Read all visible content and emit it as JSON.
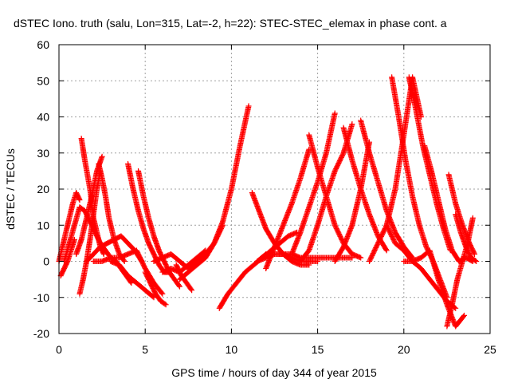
{
  "chart_data": {
    "type": "scatter",
    "title": "dSTEC Iono. truth (salu, Lon=315, Lat=-2, h=22): STEC-STEC_elemax in phase cont. a",
    "xlabel": "GPS time / hours of day 344 of year 2015",
    "ylabel": "dSTEC  / TECUs",
    "xlim": [
      0,
      25
    ],
    "ylim": [
      -20,
      60
    ],
    "xticks": [
      0,
      5,
      10,
      15,
      20,
      25
    ],
    "yticks": [
      -20,
      -10,
      0,
      10,
      20,
      30,
      40,
      50,
      60
    ],
    "grid": true,
    "marker": "+",
    "color": "#ff0000",
    "series": [
      {
        "x": [
          0.0,
          0.2,
          0.4,
          0.6,
          0.8,
          1.0,
          1.2
        ],
        "y": [
          0,
          4,
          8,
          12,
          16,
          19,
          17
        ]
      },
      {
        "x": [
          0.1,
          0.3,
          0.5,
          0.7,
          0.9
        ],
        "y": [
          -4,
          -2,
          0,
          3,
          6
        ]
      },
      {
        "x": [
          0.3,
          0.6,
          0.9,
          1.2,
          1.5,
          1.8,
          2.1,
          2.4,
          2.7,
          3.0,
          3.3,
          3.6,
          3.9,
          4.2
        ],
        "y": [
          0,
          5,
          10,
          15,
          14,
          11,
          8,
          5,
          3,
          1,
          0,
          -2,
          -4,
          -6
        ]
      },
      {
        "x": [
          1.2,
          1.4,
          1.6,
          1.8,
          2.0,
          2.2,
          2.4
        ],
        "y": [
          -9,
          -5,
          0,
          6,
          13,
          20,
          25
        ]
      },
      {
        "x": [
          1.3,
          1.5,
          1.8,
          2.0,
          2.2,
          2.4,
          2.6
        ],
        "y": [
          34,
          28,
          20,
          12,
          8,
          4,
          2
        ]
      },
      {
        "x": [
          1.0,
          1.3,
          1.6,
          1.9,
          2.2,
          2.5
        ],
        "y": [
          2,
          6,
          12,
          18,
          25,
          29
        ]
      },
      {
        "x": [
          2.3,
          2.5,
          2.7,
          2.9,
          3.2,
          3.5,
          3.8
        ],
        "y": [
          27,
          23,
          18,
          12,
          6,
          2,
          0
        ]
      },
      {
        "x": [
          1.6,
          2.0,
          2.4,
          2.8,
          3.2,
          3.6,
          4.0,
          4.4,
          4.8
        ],
        "y": [
          0,
          2,
          4,
          5,
          6,
          7,
          5,
          3,
          0
        ]
      },
      {
        "x": [
          2.0,
          2.5,
          3.0,
          3.5,
          4.0,
          4.5,
          5.0,
          5.5,
          6.0
        ],
        "y": [
          0,
          0,
          1,
          1,
          2,
          3,
          -2,
          -6,
          -9
        ]
      },
      {
        "x": [
          3.0,
          3.5,
          4.0,
          4.5,
          5.0,
          5.5
        ],
        "y": [
          0,
          -1,
          -4,
          -6,
          -8,
          -10
        ]
      },
      {
        "x": [
          4.0,
          4.3,
          4.6,
          4.9,
          5.2,
          5.5,
          5.8,
          6.1,
          6.4
        ],
        "y": [
          27,
          20,
          14,
          9,
          5,
          2,
          -1,
          -3,
          -3
        ]
      },
      {
        "x": [
          4.6,
          4.9,
          5.2,
          5.5,
          5.8,
          6.1,
          6.4,
          6.7,
          7.0
        ],
        "y": [
          25,
          18,
          12,
          7,
          3,
          0,
          -3,
          -5,
          -7
        ]
      },
      {
        "x": [
          5.0,
          5.3,
          5.6,
          5.9,
          6.2
        ],
        "y": [
          -3,
          -6,
          -9,
          -11,
          -12
        ]
      },
      {
        "x": [
          5.5,
          6.0,
          6.5,
          7.0,
          7.5,
          8.0,
          8.5,
          9.0,
          9.5
        ],
        "y": [
          0,
          1,
          2,
          0,
          -2,
          0,
          2,
          5,
          10
        ]
      },
      {
        "x": [
          6.0,
          6.5,
          7.0,
          7.5,
          8.0,
          8.5
        ],
        "y": [
          -3,
          -2,
          -3,
          -1,
          1,
          3
        ]
      },
      {
        "x": [
          6.8,
          7.1,
          7.4,
          7.7
        ],
        "y": [
          -1,
          -4,
          -6,
          -8
        ]
      },
      {
        "x": [
          7.0,
          7.5,
          8.0,
          8.5,
          9.0,
          9.5,
          10.0,
          10.5,
          11.0
        ],
        "y": [
          -5,
          -3,
          -1,
          1,
          5,
          11,
          20,
          32,
          43
        ]
      },
      {
        "x": [
          9.3,
          9.8,
          10.3,
          10.8,
          11.3,
          11.8,
          12.3,
          12.8,
          13.3,
          13.8
        ],
        "y": [
          -13,
          -9,
          -6,
          -3,
          -1,
          1,
          3,
          5,
          7,
          8
        ]
      },
      {
        "x": [
          11.2,
          11.6,
          12.0,
          12.5,
          13.0,
          13.5,
          14.0,
          14.5
        ],
        "y": [
          19,
          14,
          9,
          5,
          2,
          0,
          -1,
          -1
        ]
      },
      {
        "x": [
          11.5,
          12.0,
          12.5,
          13.0,
          13.5,
          14.0,
          14.5,
          15.0
        ],
        "y": [
          0,
          1,
          2,
          2,
          1,
          0,
          0,
          0
        ]
      },
      {
        "x": [
          11.5,
          12.0,
          12.5,
          13.0,
          13.5,
          14.0,
          14.5,
          15.0,
          15.5,
          16.0,
          16.5,
          17.0
        ],
        "y": [
          0,
          2,
          2,
          2,
          2,
          1,
          1,
          1,
          1,
          1,
          1,
          1
        ]
      },
      {
        "x": [
          12.0,
          12.5,
          13.0,
          13.5,
          14.0,
          14.5
        ],
        "y": [
          -2,
          4,
          10,
          16,
          23,
          31
        ]
      },
      {
        "x": [
          13.5,
          14.0,
          14.5,
          15.0,
          15.5,
          16.0
        ],
        "y": [
          2,
          8,
          15,
          22,
          30,
          41
        ]
      },
      {
        "x": [
          14.0,
          14.5,
          15.0,
          15.5,
          16.0,
          16.5,
          17.0
        ],
        "y": [
          0,
          3,
          10,
          18,
          25,
          30,
          38
        ]
      },
      {
        "x": [
          14.5,
          15.0,
          15.5,
          16.0,
          16.5,
          17.0,
          17.5
        ],
        "y": [
          35,
          26,
          18,
          10,
          5,
          2,
          1
        ]
      },
      {
        "x": [
          16.5,
          17.0,
          17.5,
          18.0,
          18.5,
          19.0
        ],
        "y": [
          37,
          28,
          20,
          13,
          7,
          3
        ]
      },
      {
        "x": [
          16.0,
          16.5,
          17.0,
          17.5,
          18.0
        ],
        "y": [
          0,
          4,
          10,
          20,
          33
        ]
      },
      {
        "x": [
          17.5,
          18.0,
          18.5,
          19.0,
          19.5,
          20.0,
          20.5
        ],
        "y": [
          39,
          30,
          22,
          14,
          8,
          4,
          1
        ]
      },
      {
        "x": [
          18.0,
          18.5,
          19.0,
          19.5,
          20.0,
          20.5,
          21.0
        ],
        "y": [
          0,
          5,
          10,
          20,
          35,
          51,
          40
        ]
      },
      {
        "x": [
          19.3,
          19.7,
          20.1,
          20.5,
          20.9,
          21.3,
          21.7,
          22.1,
          22.5
        ],
        "y": [
          51,
          40,
          28,
          18,
          10,
          4,
          0,
          -5,
          -10
        ]
      },
      {
        "x": [
          20.3,
          20.7,
          21.1,
          21.5,
          21.9,
          22.3,
          22.7
        ],
        "y": [
          51,
          42,
          32,
          24,
          16,
          9,
          3
        ]
      },
      {
        "x": [
          19.0,
          19.5,
          20.0,
          20.5,
          21.0,
          21.5,
          22.0,
          22.5,
          23.0
        ],
        "y": [
          10,
          5,
          3,
          0,
          -2,
          -5,
          -8,
          -11,
          -13
        ]
      },
      {
        "x": [
          20.0,
          20.5,
          21.0,
          21.5,
          22.0,
          22.5,
          23.0,
          23.5
        ],
        "y": [
          0,
          0,
          1,
          3,
          -5,
          -12,
          -18,
          -15
        ]
      },
      {
        "x": [
          21.2,
          21.6,
          22.0,
          22.4,
          22.8,
          23.2,
          23.6,
          24.0
        ],
        "y": [
          32,
          25,
          17,
          9,
          3,
          0,
          1,
          0
        ]
      },
      {
        "x": [
          22.6,
          23.0,
          23.4,
          23.8,
          24.1
        ],
        "y": [
          24,
          16,
          10,
          5,
          2
        ]
      },
      {
        "x": [
          22.5,
          22.8,
          23.1,
          23.4,
          23.7,
          24.0
        ],
        "y": [
          -18,
          -12,
          -5,
          0,
          5,
          12
        ]
      },
      {
        "x": [
          23.0,
          23.3,
          23.6,
          23.9,
          24.2
        ],
        "y": [
          13,
          8,
          4,
          1,
          0
        ]
      }
    ]
  }
}
